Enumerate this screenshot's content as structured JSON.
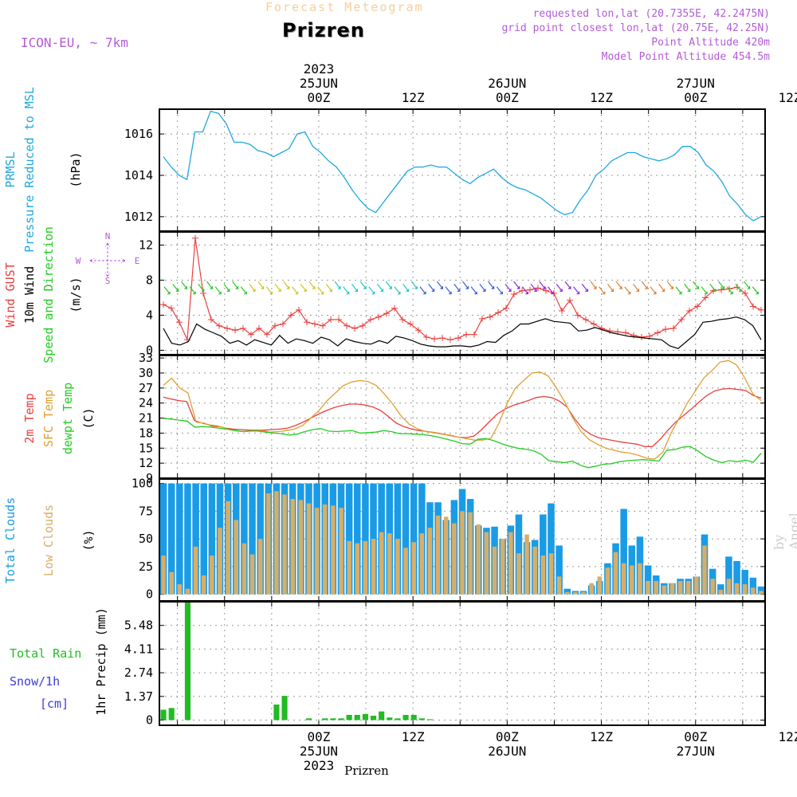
{
  "header": {
    "product": "Forecast Meteogram",
    "location": "Prizren",
    "model": "ICON-EU, ~ 7km",
    "requested": "requested lon,lat (20.7355E, 42.2475N)",
    "gridpoint": "grid point closest lon,lat (20.75E, 42.25N)",
    "point_alt": "Point Altitude 420m",
    "model_alt": "Model Point Altitude 454.5m",
    "footer": "Prizren",
    "signature": "by Angel"
  },
  "time_axis": {
    "top_labels": [
      {
        "t": 0,
        "lines": [
          "2023",
          "25JUN",
          "00Z"
        ]
      },
      {
        "t": 12,
        "lines": [
          "12Z"
        ]
      },
      {
        "t": 24,
        "lines": [
          "26JUN",
          "00Z"
        ]
      },
      {
        "t": 36,
        "lines": [
          "12Z"
        ]
      },
      {
        "t": 48,
        "lines": [
          "27JUN",
          "00Z"
        ]
      },
      {
        "t": 60,
        "lines": [
          "12Z"
        ]
      }
    ],
    "bottom_labels": [
      {
        "t": 0,
        "lines": [
          "00Z",
          "25JUN",
          "2023"
        ]
      },
      {
        "t": 12,
        "lines": [
          "12Z"
        ]
      },
      {
        "t": 24,
        "lines": [
          "00Z",
          "26JUN"
        ]
      },
      {
        "t": 36,
        "lines": [
          "12Z"
        ]
      },
      {
        "t": 48,
        "lines": [
          "00Z",
          "27JUN"
        ]
      },
      {
        "t": 60,
        "lines": [
          "12Z"
        ]
      }
    ]
  },
  "colors": {
    "pressure": "#1ea8e0",
    "gust": "#e8403e",
    "wind": "#000000",
    "sfc_temp": "#e0a030",
    "dewpt": "#22cc22",
    "total_clouds": "#1a9be6",
    "low_clouds": "#d7ae68",
    "rain": "#22bb22",
    "snow": "#3c3cdd",
    "title_purple": "#b35bd6"
  },
  "chart_data": [
    {
      "type": "line",
      "panel": "pressure",
      "ylabel_lines": [
        {
          "text": "PRMSL",
          "color": "#1ea8e0"
        },
        {
          "text": "Pressure Reduced to MSL",
          "color": "#1ea8e0"
        },
        {
          "text": "(hPa)",
          "color": "#000000"
        }
      ],
      "ylim": [
        1011.3,
        1017.2
      ],
      "yticks": [
        1012,
        1014,
        1016
      ],
      "series": [
        {
          "values": [
            1014.9,
            1014.4,
            1014.0,
            1013.8,
            1016.1,
            1016.1,
            1017.1,
            1017.0,
            1016.5,
            1015.6,
            1015.6,
            1015.5,
            1015.2,
            1015.1,
            1014.9,
            1015.1,
            1015.3,
            1016.0,
            1016.1,
            1015.4,
            1015.1,
            1014.7,
            1014.4,
            1013.9,
            1013.3,
            1012.8,
            1012.4,
            1012.2,
            1012.7,
            1013.2,
            1013.7,
            1014.2,
            1014.4,
            1014.4,
            1014.5,
            1014.4,
            1014.4,
            1014.1,
            1013.8,
            1013.6,
            1013.9,
            1014.1,
            1014.3,
            1013.9,
            1013.6,
            1013.4,
            1013.3,
            1013.1,
            1012.9,
            1012.6,
            1012.3,
            1012.1,
            1012.2,
            1012.8,
            1013.3,
            1014.0,
            1014.3,
            1014.7,
            1014.9,
            1015.1,
            1015.1,
            1014.9,
            1014.8,
            1014.7,
            1014.8,
            1015.0,
            1015.4,
            1015.4,
            1015.1,
            1014.5,
            1014.2,
            1013.7,
            1013.0,
            1012.6,
            1012.1,
            1011.8,
            1012.0
          ]
        }
      ]
    },
    {
      "type": "line",
      "panel": "wind",
      "ylabel_lines": [
        {
          "text": "Wind GUST",
          "color": "#e8403e"
        },
        {
          "text": "10m Wind",
          "color": "#000000"
        },
        {
          "text": "Speed and Direction",
          "color": "#22cc22"
        },
        {
          "text": "(m/s)",
          "color": "#000000"
        }
      ],
      "compass": {
        "n": "N",
        "s": "S",
        "e": "E",
        "w": "W"
      },
      "ylim": [
        -0.5,
        13.5
      ],
      "yticks": [
        0,
        4,
        8,
        12
      ],
      "series": [
        {
          "name": "gust",
          "values": [
            5.2,
            4.8,
            3.2,
            1.2,
            12.8,
            6.5,
            3.5,
            2.8,
            2.5,
            2.3,
            2.5,
            1.8,
            2.5,
            1.8,
            2.8,
            3.0,
            4.0,
            4.6,
            3.2,
            3.0,
            2.8,
            3.5,
            3.5,
            2.8,
            2.5,
            2.8,
            3.5,
            3.8,
            4.2,
            4.8,
            3.5,
            3.0,
            2.3,
            1.5,
            1.3,
            1.4,
            1.2,
            1.4,
            1.8,
            1.8,
            3.6,
            3.8,
            4.3,
            4.8,
            6.4,
            6.8,
            6.9,
            7.1,
            6.8,
            6.5,
            4.5,
            5.7,
            4.0,
            3.5,
            3.0,
            2.5,
            2.2,
            2.1,
            2.0,
            1.7,
            1.5,
            1.6,
            2.0,
            2.4,
            2.5,
            3.5,
            4.5,
            5.0,
            6.0,
            6.8,
            6.9,
            7.0,
            7.2,
            6.5,
            5.0,
            4.6
          ]
        },
        {
          "name": "wind",
          "values": [
            2.5,
            0.8,
            0.6,
            1.0,
            3.0,
            2.4,
            2.0,
            1.6,
            0.8,
            1.1,
            0.6,
            1.2,
            0.9,
            0.6,
            1.7,
            0.8,
            1.3,
            1.1,
            0.8,
            1.5,
            1.2,
            0.5,
            1.3,
            1.0,
            0.8,
            0.7,
            1.1,
            0.8,
            1.6,
            1.4,
            1.1,
            0.7,
            0.5,
            0.4,
            0.4,
            0.5,
            0.5,
            0.4,
            0.6,
            1.0,
            0.9,
            1.7,
            2.2,
            3.0,
            3.0,
            3.3,
            3.6,
            3.3,
            3.2,
            3.1,
            2.2,
            2.3,
            2.6,
            2.3,
            2.0,
            1.8,
            1.6,
            1.5,
            1.4,
            1.3,
            1.2,
            0.5,
            0.2,
            1.0,
            1.8,
            3.2,
            3.3,
            3.5,
            3.6,
            3.8,
            3.5,
            2.8,
            1.2
          ]
        }
      ]
    },
    {
      "type": "line",
      "panel": "temperature",
      "ylabel_lines": [
        {
          "text": "2m Temp",
          "color": "#e8403e"
        },
        {
          "text": "SFC Temp",
          "color": "#e0a030"
        },
        {
          "text": "dewpt Temp",
          "color": "#22cc22"
        },
        {
          "text": "(C)",
          "color": "#000000"
        }
      ],
      "ylim": [
        9,
        33.5
      ],
      "yticks": [
        9,
        12,
        15,
        18,
        21,
        24,
        27,
        30,
        33
      ],
      "series": [
        {
          "name": "2m Temp",
          "values": [
            25.2,
            24.8,
            24.5,
            24.3,
            20.5,
            20.0,
            19.6,
            19.4,
            19.0,
            18.8,
            18.7,
            18.6,
            18.6,
            18.6,
            18.7,
            18.8,
            19.0,
            19.5,
            20.2,
            21.0,
            21.8,
            22.5,
            23.1,
            23.5,
            23.8,
            23.8,
            23.6,
            23.2,
            22.5,
            21.3,
            20.0,
            19.3,
            18.8,
            18.5,
            18.3,
            18.1,
            17.8,
            17.5,
            17.2,
            17.1,
            17.4,
            18.7,
            20.3,
            21.8,
            22.8,
            23.5,
            24.0,
            24.5,
            25.1,
            25.3,
            25.1,
            24.4,
            23.2,
            20.8,
            18.9,
            17.8,
            17.1,
            16.8,
            16.5,
            16.2,
            16.0,
            15.8,
            15.3,
            15.3,
            16.8,
            18.6,
            20.2,
            21.5,
            22.8,
            24.2,
            25.5,
            26.4,
            26.8,
            26.9,
            26.7,
            26.5,
            25.5,
            25.0
          ]
        },
        {
          "name": "SFC Temp",
          "values": [
            27.5,
            29.0,
            27.0,
            26.0,
            20.2,
            20.0,
            19.3,
            19.3,
            18.7,
            18.4,
            18.3,
            18.5,
            18.5,
            18.2,
            18.3,
            18.5,
            18.8,
            19.5,
            21.0,
            22.5,
            24.5,
            26.0,
            27.5,
            28.2,
            28.5,
            28.3,
            27.5,
            25.8,
            23.8,
            21.5,
            19.8,
            18.9,
            18.3,
            18.1,
            17.8,
            17.6,
            17.2,
            16.9,
            16.6,
            16.6,
            17.0,
            20.0,
            24.0,
            27.0,
            28.5,
            30.0,
            30.2,
            29.4,
            27.0,
            24.3,
            21.0,
            18.3,
            16.7,
            15.8,
            15.0,
            14.6,
            14.2,
            14.0,
            13.6,
            13.0,
            12.8,
            14.2,
            18.0,
            21.0,
            24.0,
            26.5,
            29.0,
            30.5,
            32.2,
            32.5,
            31.6,
            29.0,
            25.8,
            24.5
          ]
        },
        {
          "name": "dewpt Temp",
          "values": [
            20.9,
            20.8,
            20.6,
            20.4,
            19.2,
            19.3,
            19.2,
            19.0,
            18.8,
            18.6,
            18.3,
            18.4,
            18.4,
            18.2,
            18.0,
            17.9,
            17.6,
            17.8,
            18.3,
            18.7,
            18.9,
            18.4,
            18.3,
            18.4,
            18.5,
            18.0,
            18.1,
            18.2,
            18.5,
            18.3,
            17.9,
            17.9,
            17.8,
            17.7,
            17.5,
            17.2,
            16.8,
            16.4,
            15.9,
            15.8,
            16.8,
            16.9,
            16.5,
            15.9,
            15.4,
            15.0,
            14.8,
            14.5,
            13.8,
            12.5,
            12.3,
            12.1,
            12.4,
            11.6,
            11.1,
            11.4,
            11.8,
            11.9,
            12.3,
            12.5,
            12.6,
            12.7,
            12.6,
            12.4,
            14.6,
            14.7,
            15.2,
            15.3,
            14.4,
            13.3,
            12.6,
            12.1,
            12.5,
            12.3,
            12.6,
            12.2,
            14.0
          ]
        }
      ]
    },
    {
      "type": "bar",
      "panel": "clouds",
      "ylabel_lines": [
        {
          "text": "Total Clouds",
          "color": "#1a9be6"
        },
        {
          "text": "Low Clouds",
          "color": "#d7ae68"
        },
        {
          "text": "(%)",
          "color": "#000000"
        }
      ],
      "ylim": [
        -6,
        104
      ],
      "yticks": [
        0,
        25,
        50,
        75,
        100
      ],
      "series": [
        {
          "name": "total",
          "values": [
            100,
            100,
            100,
            100,
            100,
            100,
            100,
            100,
            100,
            100,
            100,
            100,
            100,
            100,
            100,
            100,
            100,
            100,
            100,
            100,
            100,
            100,
            100,
            100,
            100,
            100,
            100,
            100,
            100,
            100,
            100,
            100,
            100,
            83,
            83,
            67,
            85,
            95,
            86,
            62,
            60,
            61,
            50,
            62,
            72,
            47,
            49,
            72,
            82,
            44,
            5,
            3,
            3,
            8,
            12,
            28,
            46,
            77,
            44,
            52,
            26,
            17,
            10,
            10,
            14,
            14,
            16,
            54,
            23,
            9,
            34,
            30,
            22,
            15,
            7
          ]
        },
        {
          "name": "low",
          "values": [
            35,
            20,
            9,
            5,
            43,
            17,
            35,
            60,
            84,
            67,
            46,
            36,
            50,
            91,
            93,
            90,
            86,
            85,
            82,
            78,
            81,
            80,
            78,
            48,
            46,
            48,
            50,
            56,
            55,
            50,
            42,
            47,
            55,
            60,
            71,
            70,
            64,
            75,
            74,
            63,
            56,
            43,
            50,
            56,
            37,
            54,
            43,
            35,
            37,
            16,
            2,
            2,
            2,
            10,
            16,
            24,
            38,
            28,
            26,
            28,
            12,
            12,
            8,
            10,
            12,
            12,
            16,
            44,
            14,
            4,
            14,
            10,
            9,
            6,
            3
          ]
        }
      ]
    },
    {
      "type": "bar",
      "panel": "precip",
      "ylabel_lines": [
        {
          "text": "1hr Precip (mm)",
          "color": "#000000"
        }
      ],
      "side_labels": [
        {
          "text": "Total  Rain",
          "color": "#22bb22"
        },
        {
          "text": "Snow/1h",
          "color": "#3c3cdd"
        },
        {
          "text": "[cm]",
          "color": "#3c3cdd"
        }
      ],
      "ylim": [
        -0.3,
        6.85
      ],
      "yticks": [
        0,
        1.37,
        2.74,
        4.11,
        5.48
      ],
      "ytick_labels": [
        "0",
        "1.37",
        "2.74",
        "4.11",
        "5.48"
      ],
      "series": [
        {
          "name": "Total Rain",
          "values": [
            0.6,
            0.7,
            0,
            6.8,
            0,
            0,
            0,
            0,
            0,
            0,
            0,
            0,
            0,
            0,
            0.9,
            1.4,
            0,
            0,
            0.1,
            0,
            0.1,
            0.1,
            0.1,
            0.3,
            0.3,
            0.35,
            0.25,
            0.5,
            0.15,
            0.1,
            0.3,
            0.3,
            0.1,
            0.05,
            0,
            0,
            0,
            0,
            0,
            0,
            0,
            0,
            0,
            0,
            0,
            0,
            0,
            0,
            0,
            0,
            0,
            0,
            0,
            0,
            0,
            0,
            0,
            0,
            0,
            0,
            0,
            0,
            0,
            0,
            0,
            0,
            0,
            0,
            0,
            0,
            0,
            0,
            0,
            0,
            0
          ]
        }
      ]
    }
  ]
}
